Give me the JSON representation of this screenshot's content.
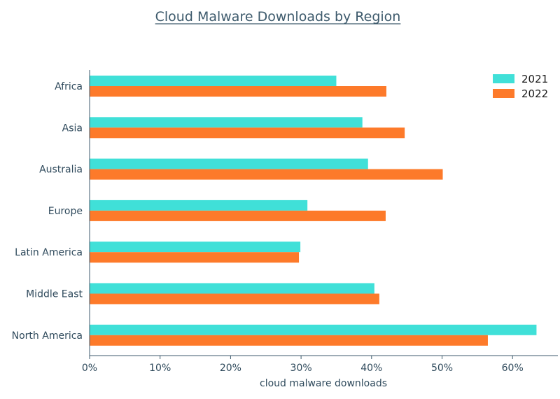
{
  "chart_data": {
    "type": "bar",
    "orientation": "horizontal",
    "title": "Cloud Malware Downloads by Region",
    "xlabel": "cloud malware downloads",
    "ylabel": "",
    "categories": [
      "Africa",
      "Asia",
      "Australia",
      "Europe",
      "Latin America",
      "Middle East",
      "North America"
    ],
    "series": [
      {
        "name": "2021",
        "color": "#40e0d8",
        "values": [
          35,
          38.7,
          39.5,
          30.9,
          29.9,
          40.4,
          63.4
        ]
      },
      {
        "name": "2022",
        "color": "#fd7a2a",
        "values": [
          42.1,
          44.7,
          50.1,
          42,
          29.7,
          41.1,
          56.5
        ]
      }
    ],
    "xlim": [
      0,
      66
    ],
    "xticks": [
      0,
      10,
      20,
      30,
      40,
      50,
      60
    ],
    "xtick_format": "percent",
    "grid": false,
    "legend_position": "top-right"
  }
}
